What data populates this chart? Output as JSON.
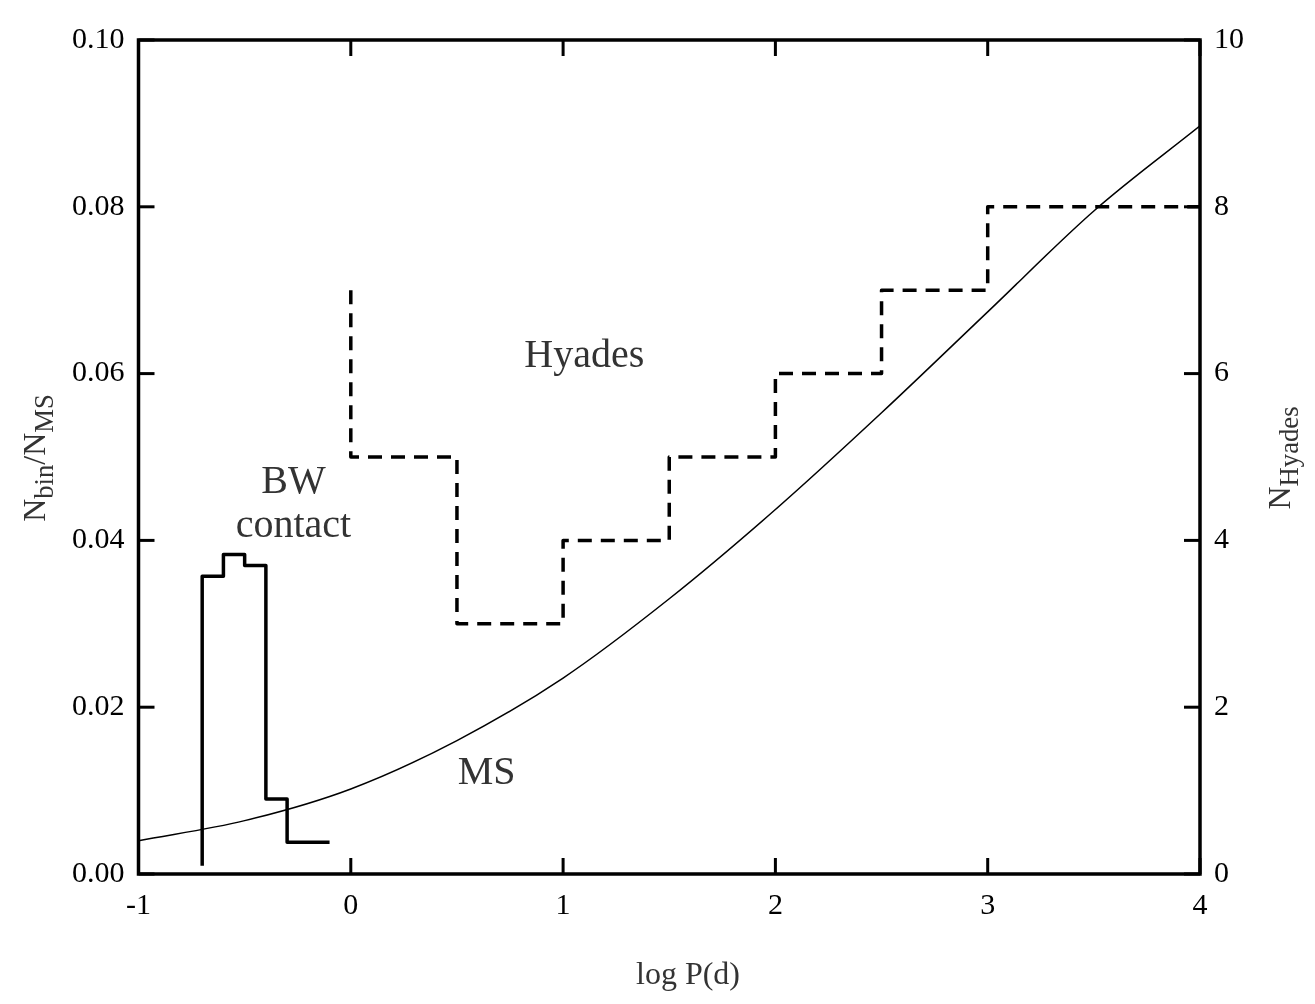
{
  "chart_data": {
    "type": "line",
    "xlabel": "log P(d)",
    "ylabel": "N$_{bin}$/N$_{MS}$",
    "y2label": "N$_{Hyades}$",
    "xlim": [
      -1,
      4
    ],
    "xticks": [
      -1,
      0,
      1,
      2,
      3,
      4
    ],
    "ylim": [
      0,
      0.1
    ],
    "yticks": [
      {
        "value": 0,
        "label": "0.00"
      },
      {
        "value": 0.02,
        "label": "0.02"
      },
      {
        "value": 0.04,
        "label": "0.04"
      },
      {
        "value": 0.06,
        "label": "0.06"
      },
      {
        "value": 0.08,
        "label": "0.08"
      },
      {
        "value": 0.1,
        "label": "0.10"
      }
    ],
    "y2lim": [
      0,
      10
    ],
    "y2ticks": [
      0,
      2,
      4,
      6,
      8,
      10
    ],
    "series": [
      {
        "type": "line",
        "color": "#000000",
        "line_style": "solid",
        "x": [
          -1,
          -0.5,
          0,
          0.5,
          1,
          1.5,
          2,
          2.5,
          3,
          3.5,
          4
        ],
        "values": [
          0.004,
          0.0064,
          0.0102,
          0.016,
          0.0235,
          0.033,
          0.0437,
          0.0553,
          0.0674,
          0.0795,
          0.0897
        ]
      },
      {
        "type": "step",
        "color": "#000000",
        "line_style": "solid",
        "x": [
          -0.7,
          -0.6,
          -0.5,
          -0.4,
          -0.3,
          -0.2,
          -0.1
        ],
        "values": [
          0.001,
          0.0357,
          0.0383,
          0.037,
          0.009,
          0.0038,
          0.0038
        ]
      },
      {
        "type": "step",
        "color": "#000000",
        "line_style": "dashed",
        "axis": "y2",
        "x": [
          0,
          0.5,
          1,
          1.5,
          2,
          2.5,
          3,
          3.5,
          4
        ],
        "values": [
          7,
          5,
          3,
          4,
          5,
          6,
          7,
          8,
          8
        ]
      }
    ],
    "annotations": [
      "Hyades",
      "BW contact",
      "MS"
    ]
  }
}
